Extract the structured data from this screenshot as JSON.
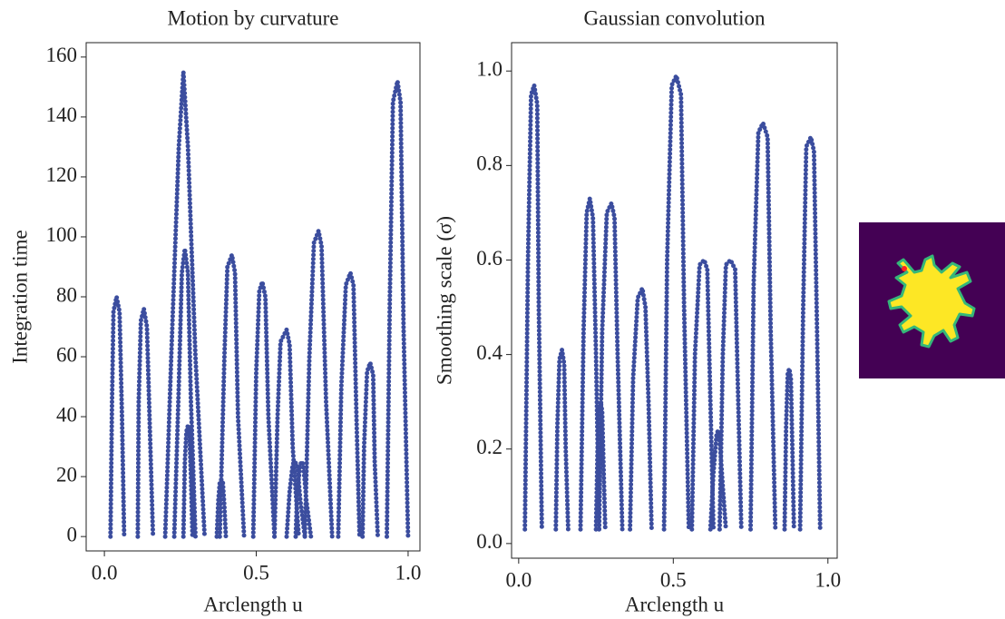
{
  "chart_data": [
    {
      "type": "line",
      "title": "Motion by curvature",
      "xlabel": "Arclength u",
      "ylabel": "Integration time",
      "color": "#3b4d9e",
      "grid": false,
      "xlim": [
        -0.06,
        1.039
      ],
      "ylim": [
        -4.8,
        164.8
      ],
      "xticks": [
        {
          "value": 0,
          "label": "0.0"
        },
        0.5,
        {
          "value": 1,
          "label": "1.0"
        }
      ],
      "yticks": [
        0,
        20,
        40,
        60,
        80,
        100,
        120,
        140,
        160
      ],
      "series": [
        {
          "x": [
            0.02,
            0.025,
            0.03,
            0.04,
            0.05,
            0.058,
            0.065
          ],
          "values": [
            0,
            45,
            75,
            80,
            75,
            40,
            0
          ]
        },
        {
          "x": [
            0.11,
            0.113,
            0.12,
            0.13,
            0.14,
            0.15,
            0.16
          ],
          "values": [
            0,
            45,
            72,
            76,
            70,
            35,
            0
          ]
        },
        {
          "x": [
            0.2,
            0.22,
            0.245,
            0.26,
            0.275,
            0.3,
            0.33
          ],
          "values": [
            0,
            60,
            130,
            155,
            130,
            60,
            0
          ]
        },
        {
          "x": [
            0.23,
            0.245,
            0.255,
            0.265,
            0.275,
            0.285,
            0.3
          ],
          "values": [
            0,
            50,
            88,
            96,
            88,
            45,
            0
          ]
        },
        {
          "x": [
            0.26,
            0.265,
            0.27,
            0.275,
            0.28,
            0.285,
            0.29
          ],
          "values": [
            0,
            25,
            35,
            37,
            35,
            20,
            0
          ]
        },
        {
          "x": [
            0.38,
            0.395,
            0.405,
            0.42,
            0.43,
            0.44,
            0.46
          ],
          "values": [
            0,
            60,
            90,
            94,
            88,
            40,
            0
          ]
        },
        {
          "x": [
            0.49,
            0.5,
            0.51,
            0.52,
            0.53,
            0.54,
            0.56
          ],
          "values": [
            0,
            55,
            82,
            85,
            80,
            40,
            0
          ]
        },
        {
          "x": [
            0.56,
            0.57,
            0.58,
            0.6,
            0.61,
            0.62,
            0.64
          ],
          "values": [
            0,
            40,
            65,
            69,
            64,
            30,
            0
          ]
        },
        {
          "x": [
            0.66,
            0.675,
            0.69,
            0.705,
            0.715,
            0.73,
            0.75
          ],
          "values": [
            0,
            60,
            98,
            102,
            97,
            45,
            0
          ]
        },
        {
          "x": [
            0.77,
            0.78,
            0.795,
            0.81,
            0.82,
            0.83,
            0.84
          ],
          "values": [
            0,
            50,
            84,
            88,
            84,
            40,
            0
          ]
        },
        {
          "x": [
            0.85,
            0.855,
            0.865,
            0.875,
            0.885,
            0.89,
            0.9
          ],
          "values": [
            0,
            30,
            55,
            58,
            54,
            25,
            0
          ]
        },
        {
          "x": [
            0.93,
            0.94,
            0.95,
            0.965,
            0.975,
            0.985,
            1.0
          ],
          "values": [
            0,
            80,
            145,
            152,
            145,
            70,
            0
          ]
        },
        {
          "x": [
            0.37,
            0.375,
            0.38,
            0.385,
            0.39,
            0.395,
            0.4
          ],
          "values": [
            0,
            12,
            18,
            19,
            18,
            10,
            0
          ]
        },
        {
          "x": [
            0.6,
            0.61,
            0.62,
            0.625,
            0.635,
            0.645,
            0.66
          ],
          "values": [
            0,
            15,
            24,
            25,
            24,
            12,
            0
          ]
        },
        {
          "x": [
            0.63,
            0.635,
            0.645,
            0.65,
            0.655,
            0.665,
            0.68
          ],
          "values": [
            0,
            15,
            24,
            25,
            24,
            12,
            0
          ]
        }
      ]
    },
    {
      "type": "line",
      "title": "Gaussian convolution",
      "xlabel": "Arclength u",
      "ylabel": "Smoothing scale (σ)",
      "color": "#3b4d9e",
      "grid": false,
      "xlim": [
        -0.023,
        1.03
      ],
      "ylim": [
        -0.031,
        1.06
      ],
      "xticks": [
        {
          "value": 0,
          "label": "0.0"
        },
        0.5,
        {
          "value": 1,
          "label": "1.0"
        }
      ],
      "yticks": [
        {
          "value": 0,
          "label": "0.0"
        },
        0.2,
        0.4,
        0.6,
        0.8,
        {
          "value": 1,
          "label": "1.0"
        }
      ],
      "series": [
        {
          "x": [
            0.02,
            0.03,
            0.04,
            0.05,
            0.06,
            0.065,
            0.075
          ],
          "values": [
            0.03,
            0.6,
            0.95,
            0.97,
            0.93,
            0.5,
            0.03
          ]
        },
        {
          "x": [
            0.12,
            0.125,
            0.132,
            0.14,
            0.147,
            0.152,
            0.16
          ],
          "values": [
            0.03,
            0.25,
            0.39,
            0.41,
            0.38,
            0.2,
            0.03
          ]
        },
        {
          "x": [
            0.2,
            0.21,
            0.22,
            0.23,
            0.24,
            0.25,
            0.26
          ],
          "values": [
            0.03,
            0.45,
            0.7,
            0.73,
            0.69,
            0.4,
            0.03
          ]
        },
        {
          "x": [
            0.26,
            0.27,
            0.285,
            0.3,
            0.31,
            0.32,
            0.335
          ],
          "values": [
            0.03,
            0.45,
            0.7,
            0.72,
            0.69,
            0.4,
            0.03
          ]
        },
        {
          "x": [
            0.36,
            0.37,
            0.385,
            0.4,
            0.41,
            0.42,
            0.43
          ],
          "values": [
            0.03,
            0.35,
            0.52,
            0.54,
            0.5,
            0.3,
            0.03
          ]
        },
        {
          "x": [
            0.47,
            0.48,
            0.495,
            0.51,
            0.525,
            0.535,
            0.55
          ],
          "values": [
            0.03,
            0.6,
            0.97,
            0.99,
            0.95,
            0.5,
            0.03
          ]
        },
        {
          "x": [
            0.56,
            0.57,
            0.585,
            0.6,
            0.61,
            0.62,
            0.63
          ],
          "values": [
            0.03,
            0.4,
            0.59,
            0.6,
            0.58,
            0.3,
            0.03
          ]
        },
        {
          "x": [
            0.65,
            0.66,
            0.67,
            0.685,
            0.7,
            0.71,
            0.72
          ],
          "values": [
            0.03,
            0.4,
            0.59,
            0.6,
            0.58,
            0.3,
            0.03
          ]
        },
        {
          "x": [
            0.75,
            0.76,
            0.775,
            0.79,
            0.805,
            0.815,
            0.83
          ],
          "values": [
            0.03,
            0.55,
            0.87,
            0.89,
            0.86,
            0.45,
            0.03
          ]
        },
        {
          "x": [
            0.86,
            0.865,
            0.87,
            0.875,
            0.88,
            0.885,
            0.89
          ],
          "values": [
            0.03,
            0.25,
            0.36,
            0.37,
            0.35,
            0.2,
            0.03
          ]
        },
        {
          "x": [
            0.91,
            0.92,
            0.93,
            0.945,
            0.955,
            0.965,
            0.975
          ],
          "values": [
            0.03,
            0.5,
            0.84,
            0.86,
            0.83,
            0.45,
            0.03
          ]
        },
        {
          "x": [
            0.25,
            0.255,
            0.26,
            0.265,
            0.27,
            0.275,
            0.28
          ],
          "values": [
            0.03,
            0.2,
            0.29,
            0.3,
            0.28,
            0.15,
            0.03
          ]
        },
        {
          "x": [
            0.62,
            0.63,
            0.64,
            0.645,
            0.65,
            0.66,
            0.67
          ],
          "values": [
            0.03,
            0.15,
            0.23,
            0.24,
            0.22,
            0.12,
            0.03
          ]
        }
      ]
    }
  ]
}
